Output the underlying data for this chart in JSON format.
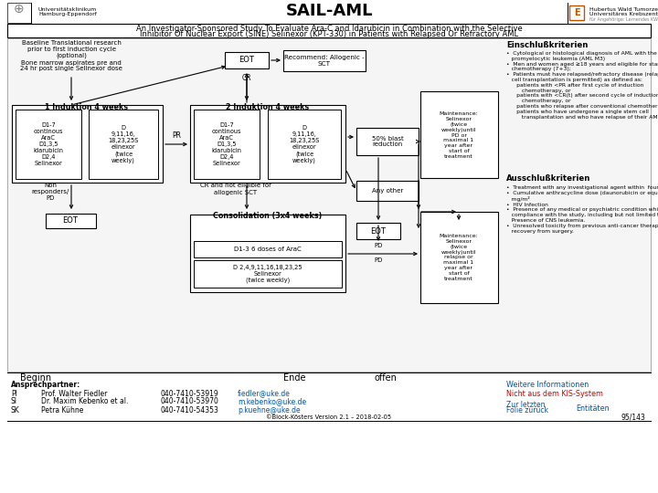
{
  "title": "SAIL-AML",
  "subtitle_line1": "An Investigator-Sponsored Study To Evaluate Ara-C and Idarubicin in Combination with the Selective",
  "subtitle_line2": "Inhibitor Of Nuclear Export (SINE) Selinexor (KPT-330) in Patients with Relapsed Or Refractory AML",
  "bg_color": "#ffffff",
  "bottom_line1": "Beginn",
  "bottom_line2": "Ende",
  "bottom_line3": "offen",
  "contact_label": "Ansprechpartner:",
  "pi_label": "PI",
  "pi_name": "Prof. Walter Fiedler",
  "pi_phone": "040-7410-53919",
  "pi_email": "fiedler@uke.de",
  "si_label": "SI",
  "si_name": "Dr. Maxim Kebenko et al.",
  "si_phone": "040-7410-53970",
  "si_email": "m.kebenko@uke.de",
  "sk_label": "SK",
  "sk_name": "Petra Kühne",
  "sk_phone": "040-7410-54353",
  "sk_email": "p.kuehne@uke.de",
  "footer": "©Block-Kösters Version 2.1 – 2018-02-05",
  "page_num": "95/143",
  "link_info": "Weitere Informationen",
  "link_kis": "Nicht aus dem KIS-System",
  "link_last": "Zur letzten\nFolie zurück",
  "link_entities": "Entitäten"
}
